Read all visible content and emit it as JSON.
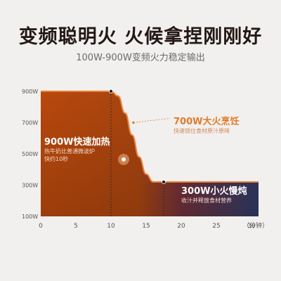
{
  "header": {
    "title": "变频聪明火  火候拿捏刚刚好",
    "subtitle": "100W-900W变频火力稳定输出"
  },
  "chart_data": {
    "type": "area",
    "x_unit_label": "（分钟）",
    "x_ticks": [
      0,
      5,
      10,
      15,
      20,
      25,
      30
    ],
    "y_ticks": [
      "100W",
      "300W",
      "500W",
      "700W",
      "900W"
    ],
    "xlim": [
      0,
      30
    ],
    "ylim": [
      100,
      900
    ],
    "series": [
      {
        "x": [
          0,
          10,
          11,
          12,
          13,
          14,
          15,
          16,
          17.5,
          31
        ],
        "y": [
          900,
          900,
          870,
          760,
          620,
          480,
          370,
          320,
          320,
          320
        ]
      }
    ],
    "points": [
      {
        "x": 10,
        "y": 900
      },
      {
        "x": 17.5,
        "y": 320
      }
    ],
    "annotations": [
      {
        "title": "900W快速加热",
        "desc1": "热牛奶比普通微波炉",
        "desc2": "快约10秒",
        "color": "#ffffff"
      },
      {
        "title": "700W大火烹饪",
        "desc1": "快速锁住食材原汁原味",
        "desc2": "",
        "color": "#e07b2a"
      },
      {
        "title": "300W小火慢炖",
        "desc1": "收汁并释放食材营养",
        "desc2": "",
        "color": "#ffffff"
      }
    ],
    "colors": {
      "fill_left": "#b8480c",
      "fill_mid": "#8a3a2a",
      "fill_right": "#2e3a66",
      "curve": "#e8833a"
    }
  }
}
